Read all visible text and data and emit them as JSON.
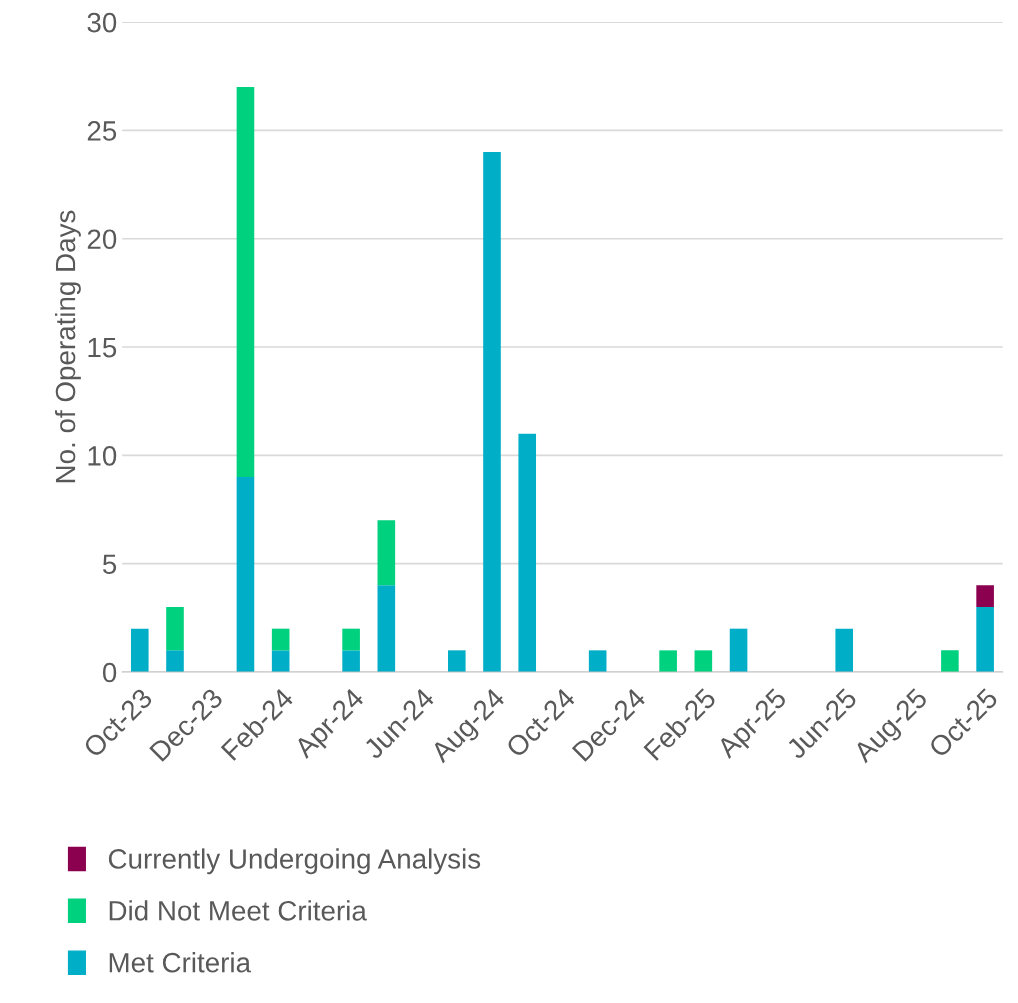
{
  "chart_data": {
    "type": "bar",
    "stacked": true,
    "ylabel": "No. of Operating Days",
    "categories": [
      "Oct-23",
      null,
      "Dec-23",
      null,
      "Feb-24",
      null,
      "Apr-24",
      null,
      "Jun-24",
      null,
      "Aug-24",
      null,
      "Oct-24",
      null,
      "Dec-24",
      null,
      "Feb-25",
      null,
      "Apr-25",
      null,
      "Jun-25",
      null,
      "Aug-25",
      null,
      "Oct-25"
    ],
    "series": [
      {
        "name": "Met Criteria",
        "color": "#00aec7",
        "values": [
          2,
          1,
          null,
          9,
          1,
          null,
          1,
          4,
          null,
          1,
          24,
          11,
          null,
          1,
          null,
          null,
          null,
          2,
          null,
          null,
          2,
          null,
          null,
          null,
          3
        ]
      },
      {
        "name": "Did Not Meet Criteria",
        "color": "#00d17f",
        "values": [
          null,
          2,
          null,
          18,
          1,
          null,
          1,
          3,
          null,
          null,
          null,
          null,
          null,
          null,
          null,
          1,
          1,
          null,
          null,
          null,
          null,
          null,
          null,
          1,
          null
        ]
      },
      {
        "name": "Currently Undergoing Analysis",
        "color": "#8c0050",
        "values": [
          null,
          null,
          null,
          null,
          null,
          null,
          null,
          null,
          null,
          null,
          null,
          null,
          null,
          null,
          null,
          null,
          null,
          null,
          null,
          null,
          null,
          null,
          null,
          null,
          1
        ]
      }
    ],
    "ylim": [
      0,
      30
    ],
    "yticks": [
      0,
      5,
      10,
      15,
      20,
      25,
      30
    ],
    "grid": "y",
    "legend": "bottom"
  }
}
